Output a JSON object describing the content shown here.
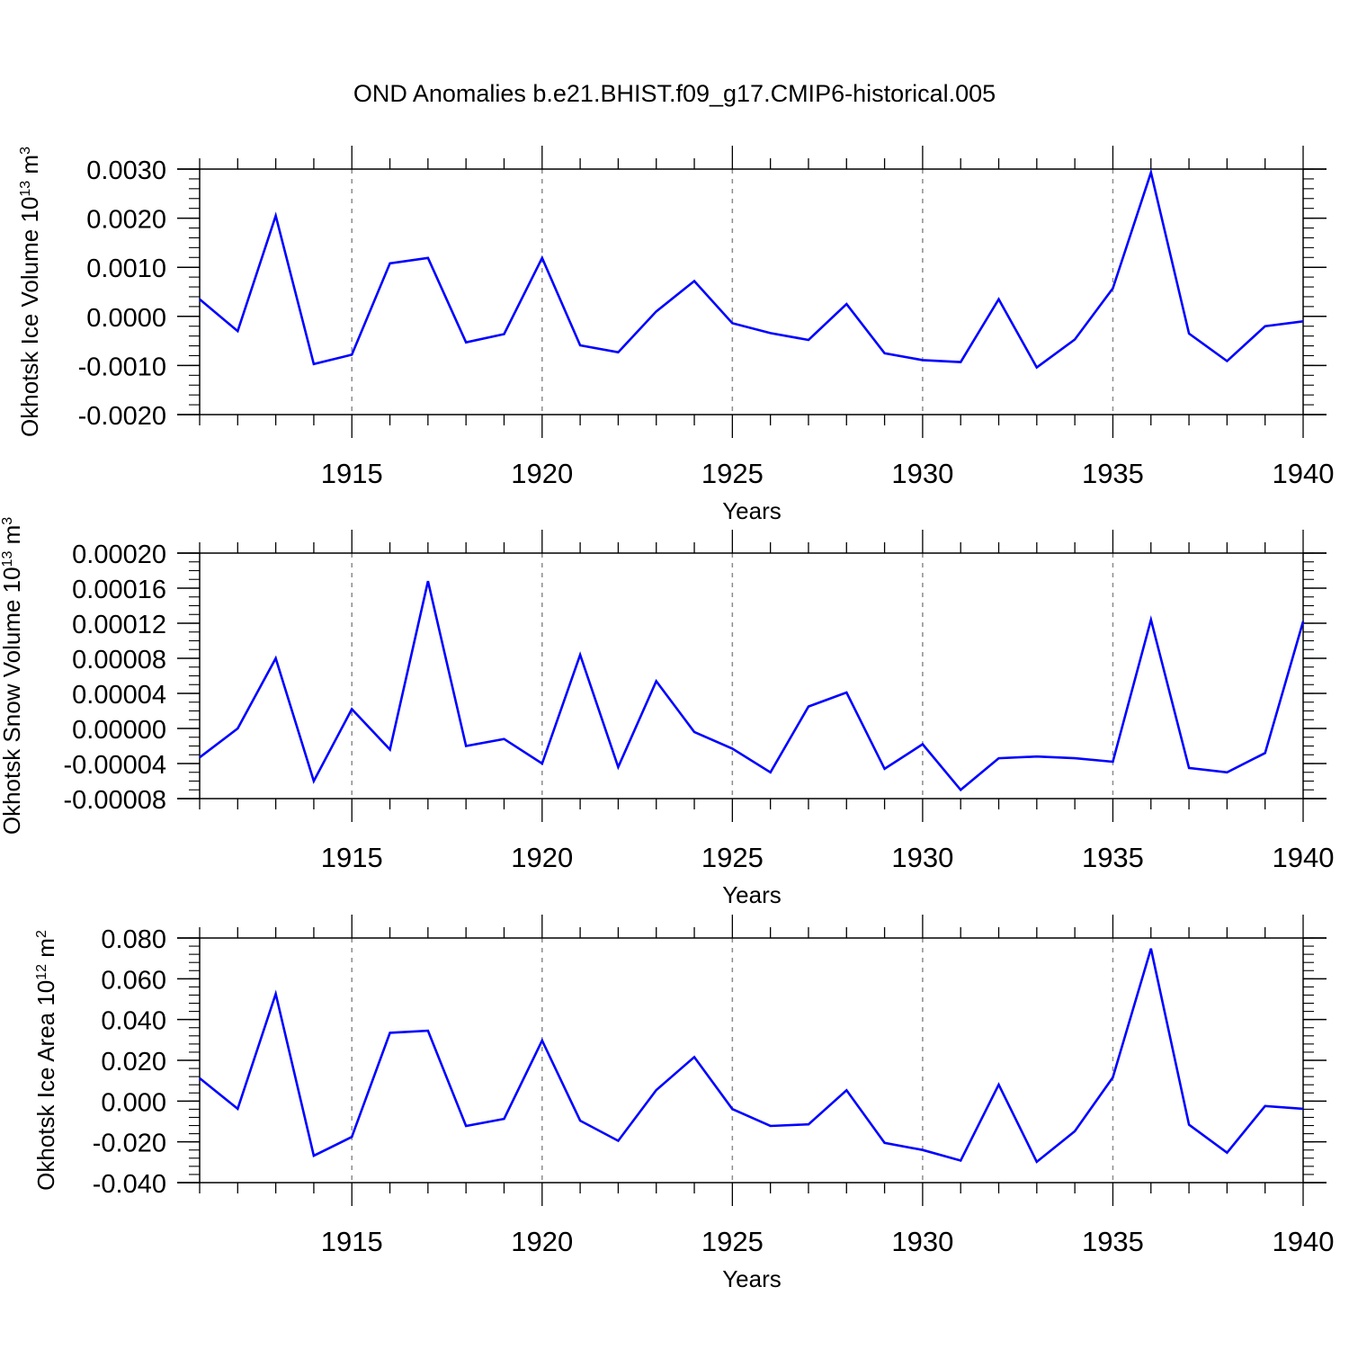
{
  "title": "OND Anomalies b.e21.BHIST.f09_g17.CMIP6-historical.005",
  "line_color": "#0000ff",
  "chart_data": [
    {
      "type": "line",
      "ylabel": "Okhotsk Ice Volume 10",
      "ylabel_exp": "13",
      "ylabel_unit": " m",
      "ylabel_unit_exp": "3",
      "xlabel": "Years",
      "xlim": [
        1911,
        1940
      ],
      "ylim": [
        -0.002,
        0.003
      ],
      "x_ticks": [
        1915,
        1920,
        1925,
        1930,
        1935,
        1940
      ],
      "y_ticks": [
        -0.002,
        -0.001,
        0.0,
        0.001,
        0.002,
        0.003
      ],
      "y_tick_labels": [
        "-0.0020",
        "-0.0010",
        "0.0000",
        "0.0010",
        "0.0020",
        "0.0030"
      ],
      "y_minor_step": 0.0002,
      "grid": "vertical dashed at major x ticks",
      "years": [
        1911,
        1912,
        1913,
        1914,
        1915,
        1916,
        1917,
        1918,
        1919,
        1920,
        1921,
        1922,
        1923,
        1924,
        1925,
        1926,
        1927,
        1928,
        1929,
        1930,
        1931,
        1932,
        1933,
        1934,
        1935,
        1936,
        1937,
        1938,
        1939,
        1940
      ],
      "values": [
        0.00035,
        -0.0003,
        0.00205,
        -0.00097,
        -0.00078,
        0.00108,
        0.00119,
        -0.00053,
        -0.00036,
        0.00119,
        -0.00059,
        -0.00073,
        0.0001,
        0.00072,
        -0.00014,
        -0.00034,
        -0.00048,
        0.00025,
        -0.00075,
        -0.00089,
        -0.00093,
        0.00035,
        -0.00104,
        -0.00047,
        0.00057,
        0.00293,
        -0.00035,
        -0.00091,
        -0.0002,
        -0.0001
      ]
    },
    {
      "type": "line",
      "ylabel": "Okhotsk Snow Volume 10",
      "ylabel_exp": "13",
      "ylabel_unit": " m",
      "ylabel_unit_exp": "3",
      "xlabel": "Years",
      "xlim": [
        1911,
        1940
      ],
      "ylim": [
        -8e-05,
        0.0002
      ],
      "x_ticks": [
        1915,
        1920,
        1925,
        1930,
        1935,
        1940
      ],
      "y_ticks": [
        -8e-05,
        -4e-05,
        0.0,
        4e-05,
        8e-05,
        0.00012,
        0.00016,
        0.0002
      ],
      "y_tick_labels": [
        "-0.00008",
        "-0.00004",
        "0.00000",
        "0.00004",
        "0.00008",
        "0.00012",
        "0.00016",
        "0.00020"
      ],
      "y_minor_step": 1e-05,
      "grid": "vertical dashed at major x ticks",
      "years": [
        1911,
        1912,
        1913,
        1914,
        1915,
        1916,
        1917,
        1918,
        1919,
        1920,
        1921,
        1922,
        1923,
        1924,
        1925,
        1926,
        1927,
        1928,
        1929,
        1930,
        1931,
        1932,
        1933,
        1934,
        1935,
        1936,
        1937,
        1938,
        1939,
        1940
      ],
      "values": [
        -3.3e-05,
        0.0,
        8e-05,
        -6e-05,
        2.2e-05,
        -2.4e-05,
        0.000168,
        -2e-05,
        -1.2e-05,
        -4e-05,
        8.4e-05,
        -4.4e-05,
        5.4e-05,
        -4e-06,
        -2.3e-05,
        -5e-05,
        2.5e-05,
        4.1e-05,
        -4.6e-05,
        -1.8e-05,
        -7e-05,
        -3.4e-05,
        -3.2e-05,
        -3.4e-05,
        -3.8e-05,
        0.000124,
        -4.5e-05,
        -5e-05,
        -2.8e-05,
        0.000122
      ]
    },
    {
      "type": "line",
      "ylabel": "Okhotsk Ice Area 10",
      "ylabel_exp": "12",
      "ylabel_unit": " m",
      "ylabel_unit_exp": "2",
      "xlabel": "Years",
      "xlim": [
        1911,
        1940
      ],
      "ylim": [
        -0.04,
        0.08
      ],
      "x_ticks": [
        1915,
        1920,
        1925,
        1930,
        1935,
        1940
      ],
      "y_ticks": [
        -0.04,
        -0.02,
        0.0,
        0.02,
        0.04,
        0.06,
        0.08
      ],
      "y_tick_labels": [
        "-0.040",
        "-0.020",
        "0.000",
        "0.020",
        "0.040",
        "0.060",
        "0.080"
      ],
      "y_minor_step": 0.004,
      "grid": "vertical dashed at major x ticks",
      "years": [
        1911,
        1912,
        1913,
        1914,
        1915,
        1916,
        1917,
        1918,
        1919,
        1920,
        1921,
        1922,
        1923,
        1924,
        1925,
        1926,
        1927,
        1928,
        1929,
        1930,
        1931,
        1932,
        1933,
        1934,
        1935,
        1936,
        1937,
        1938,
        1939,
        1940
      ],
      "values": [
        0.0112,
        -0.0038,
        0.0526,
        -0.0268,
        -0.0176,
        0.0335,
        0.0345,
        -0.0122,
        -0.0087,
        0.0297,
        -0.0096,
        -0.0195,
        0.0054,
        0.0216,
        -0.0039,
        -0.0122,
        -0.0114,
        0.0053,
        -0.0205,
        -0.024,
        -0.0292,
        0.0081,
        -0.0298,
        -0.0148,
        0.0116,
        0.0748,
        -0.0116,
        -0.0253,
        -0.0024,
        -0.0038
      ]
    }
  ]
}
